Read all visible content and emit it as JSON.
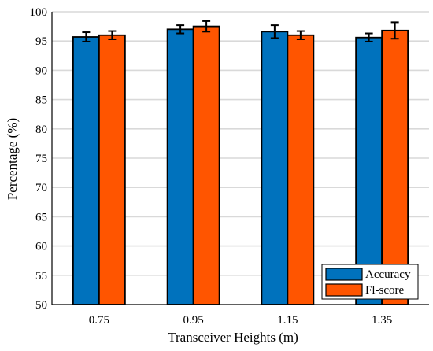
{
  "chart_data": {
    "type": "bar",
    "xlabel": "Transceiver Heights (m)",
    "ylabel": "Percentage (%)",
    "ylim": [
      50,
      100
    ],
    "yticks": [
      50,
      55,
      60,
      65,
      70,
      75,
      80,
      85,
      90,
      95,
      100
    ],
    "grid": "horizontal",
    "legend_position": "bottom-right",
    "categories": [
      "0.75",
      "0.95",
      "1.15",
      "1.35"
    ],
    "series": [
      {
        "name": "Accuracy",
        "color": "#0072BD",
        "values": [
          95.7,
          97.0,
          96.6,
          95.6
        ],
        "errors": [
          0.8,
          0.7,
          1.1,
          0.7
        ]
      },
      {
        "name": "Fl-score",
        "color": "#FF5500",
        "values": [
          96.0,
          97.5,
          96.0,
          96.8
        ],
        "errors": [
          0.7,
          0.9,
          0.7,
          1.4
        ]
      }
    ]
  }
}
